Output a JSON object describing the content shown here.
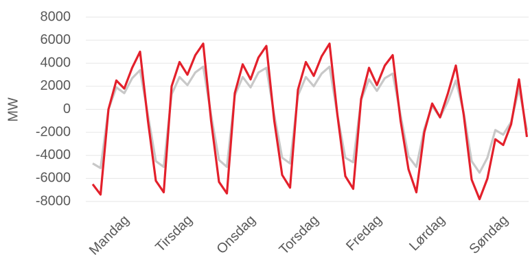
{
  "chart_data": {
    "type": "line",
    "y_label": "MW",
    "categories": [
      null,
      null,
      null,
      null,
      "Mandag",
      null,
      null,
      null,
      null,
      null,
      null,
      null,
      "Tirsdag",
      null,
      null,
      null,
      null,
      null,
      null,
      null,
      "Onsdag",
      null,
      null,
      null,
      null,
      null,
      null,
      null,
      "Torsdag",
      null,
      null,
      null,
      null,
      null,
      null,
      null,
      "Fredag",
      null,
      null,
      null,
      null,
      null,
      null,
      null,
      "Lørdag",
      null,
      null,
      null,
      null,
      null,
      null,
      null,
      "Søndag",
      null,
      null,
      null
    ],
    "series": [
      {
        "color": "#c8c8c8",
        "values": [
          -4700,
          -5100,
          0,
          1900,
          1400,
          2700,
          3400,
          -500,
          -4500,
          -5000,
          1300,
          2800,
          2100,
          3200,
          3700,
          -500,
          -4400,
          -5000,
          1200,
          2800,
          1900,
          3200,
          3600,
          -500,
          -4200,
          -4700,
          1200,
          2800,
          2000,
          3100,
          3700,
          -500,
          -4200,
          -4600,
          800,
          2600,
          1600,
          2700,
          3100,
          -500,
          -4100,
          -5000,
          -1700,
          300,
          -700,
          700,
          2500,
          -300,
          -4500,
          -5500,
          -4200,
          -1800,
          -2200,
          -1100,
          1800,
          -1800
        ]
      },
      {
        "color": "#e3202b",
        "values": [
          -6500,
          -7400,
          0,
          2500,
          1800,
          3600,
          5000,
          -1000,
          -6200,
          -7200,
          2000,
          4100,
          3000,
          4700,
          5700,
          -1000,
          -6300,
          -7300,
          1400,
          3900,
          2600,
          4500,
          5500,
          -1000,
          -5700,
          -6800,
          1700,
          4100,
          2900,
          4600,
          5700,
          -500,
          -5800,
          -6900,
          900,
          3600,
          2100,
          3800,
          4700,
          -1000,
          -5200,
          -7200,
          -2000,
          500,
          -700,
          1400,
          3800,
          -500,
          -6100,
          -7800,
          -6000,
          -2600,
          -3100,
          -1300,
          2600,
          -2400
        ]
      }
    ],
    "ylim": [
      -8000,
      8000
    ],
    "yticks": [
      -8000,
      -6000,
      -4000,
      -2000,
      0,
      2000,
      4000,
      6000,
      8000
    ],
    "grid": true
  }
}
